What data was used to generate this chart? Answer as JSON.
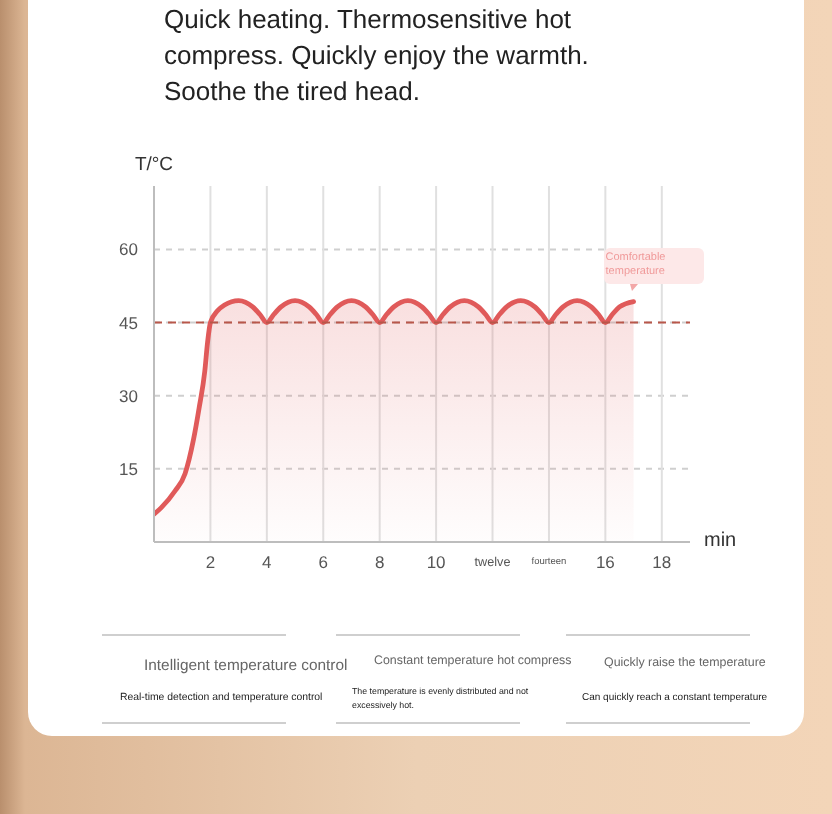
{
  "chart_data": {
    "type": "area",
    "title": "Quick heating. Thermosensitive hot compress. Quickly enjoy the warmth. Soothe the tired head.",
    "xlabel": "min",
    "ylabel": "T/°C",
    "x": [
      0,
      0.25,
      0.75,
      1.1,
      1.4,
      1.6,
      1.8,
      1.9,
      2,
      2.25,
      2.5,
      3,
      3.5,
      3.75,
      4,
      4.25,
      4.5,
      5,
      5.5,
      5.75,
      6,
      6.25,
      6.5,
      7,
      7.5,
      7.75,
      8,
      8.25,
      8.5,
      9,
      9.5,
      9.75,
      10,
      10.25,
      10.5,
      11,
      11.5,
      11.75,
      12,
      12.25,
      12.5,
      13,
      13.5,
      13.75,
      14,
      14.25,
      14.5,
      15,
      15.5,
      15.75,
      16,
      16.25,
      16.5,
      17
    ],
    "values": [
      5.7,
      7,
      10.5,
      14,
      21,
      27.5,
      35,
      41,
      45,
      47.4,
      48.6,
      49.5,
      48.2,
      46.7,
      45,
      46.7,
      48.2,
      49.5,
      48.2,
      46.7,
      45,
      46.7,
      48.2,
      49.5,
      48.2,
      46.7,
      45,
      46.7,
      48.2,
      49.5,
      48.2,
      46.7,
      45,
      46.7,
      48.2,
      49.5,
      48.2,
      46.7,
      45,
      46.7,
      48.2,
      49.5,
      48.2,
      46.7,
      45,
      46.7,
      48.2,
      49.5,
      48.2,
      46.7,
      45,
      46.7,
      48.2,
      49.3
    ],
    "color": "#e05a5a",
    "xlim": [
      0,
      19
    ],
    "xticks": [
      2,
      4,
      6,
      8,
      10,
      {
        "value": 12,
        "label": "twelve"
      },
      {
        "value": 14,
        "label": "fourteen"
      },
      16,
      18
    ],
    "ylim": [
      0,
      73
    ],
    "yticks": [
      15,
      30,
      45,
      60
    ],
    "grid": true,
    "ref_lines": [
      {
        "axis": "y",
        "value": 45,
        "color": "#b8574a",
        "line_style": "dashed"
      }
    ],
    "annotations": [
      {
        "text": "Comfortable temperature",
        "x": 17,
        "y": 49.3
      },
      "Intelligent temperature control",
      "Real-time detection and temperature control",
      "Constant temperature hot compress",
      "The temperature is evenly distributed and not excessively hot.",
      "Quickly raise the temperature",
      "Can quickly reach a constant temperature"
    ]
  }
}
